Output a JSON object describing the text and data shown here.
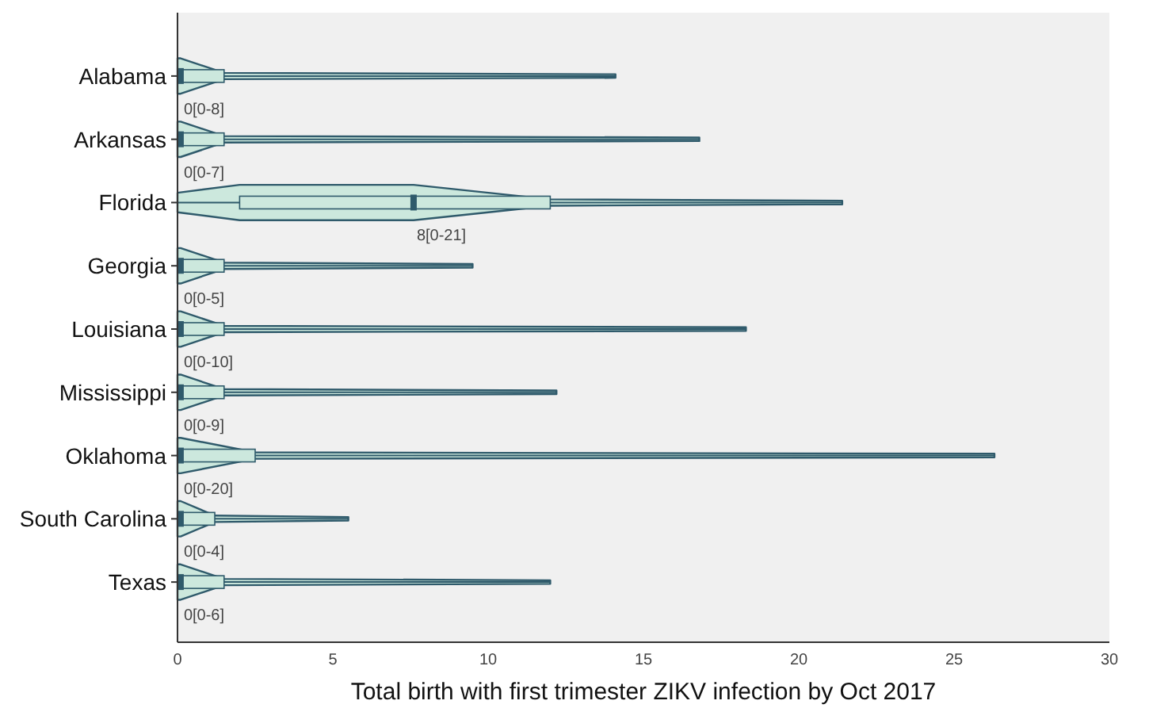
{
  "chart_data": {
    "type": "box",
    "orientation": "horizontal",
    "xlabel": "Total birth with first trimester ZIKV infection by Oct 2017",
    "categories": [
      "Alabama",
      "Arkansas",
      "Florida",
      "Georgia",
      "Louisiana",
      "Mississippi",
      "Oklahoma",
      "South Carolina",
      "Texas"
    ],
    "boxes": [
      {
        "low": 0,
        "q1": 0,
        "median": 0.1,
        "q3": 1.5,
        "high": 14.1
      },
      {
        "low": 0,
        "q1": 0,
        "median": 0.1,
        "q3": 1.5,
        "high": 16.8
      },
      {
        "low": 0,
        "q1": 2,
        "median": 7.6,
        "q3": 12,
        "high": 21.4
      },
      {
        "low": 0,
        "q1": 0,
        "median": 0.1,
        "q3": 1.5,
        "high": 9.5
      },
      {
        "low": 0,
        "q1": 0,
        "median": 0.1,
        "q3": 1.5,
        "high": 18.3
      },
      {
        "low": 0,
        "q1": 0,
        "median": 0.1,
        "q3": 1.5,
        "high": 12.2
      },
      {
        "low": 0,
        "q1": 0,
        "median": 0.1,
        "q3": 2.5,
        "high": 26.3
      },
      {
        "low": 0,
        "q1": 0,
        "median": 0.1,
        "q3": 1.2,
        "high": 5.5
      },
      {
        "low": 0,
        "q1": 0,
        "median": 0.1,
        "q3": 1.5,
        "high": 12
      }
    ],
    "color": "#cce8dd",
    "xlim": [
      0,
      30
    ],
    "xticks": [
      0,
      5,
      10,
      15,
      20,
      25,
      30
    ],
    "grid": false,
    "annotations": [
      "0[0-8]",
      "0[0-7]",
      "8[0-21]",
      "0[0-5]",
      "0[0-10]",
      "0[0-9]",
      "0[0-20]",
      "0[0-4]",
      "0[0-6]"
    ]
  }
}
